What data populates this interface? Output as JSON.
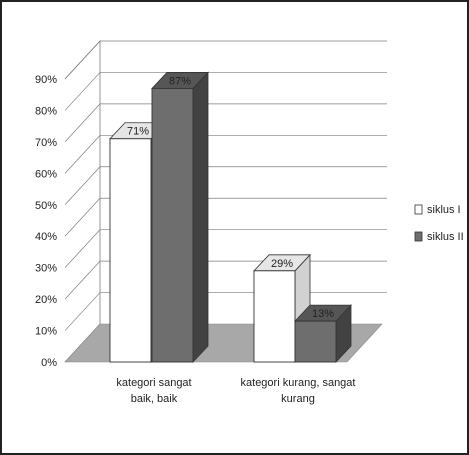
{
  "chart_data": {
    "type": "bar",
    "style": "3d-clustered-column",
    "categories": [
      "kategori sangat baik, baik",
      "kategori kurang, sangat kurang"
    ],
    "category_lines": [
      [
        "kategori sangat",
        "baik, baik"
      ],
      [
        "kategori kurang, sangat",
        "kurang"
      ]
    ],
    "series": [
      {
        "name": "siklus I",
        "values": [
          71,
          29
        ],
        "labels": [
          "71%",
          "29%"
        ],
        "color": "#ffffff"
      },
      {
        "name": "siklus II",
        "values": [
          87,
          13
        ],
        "labels": [
          "87%",
          "13%"
        ],
        "color": "#6e6e6e"
      }
    ],
    "ylim": [
      0,
      90
    ],
    "yticks": [
      "0%",
      "10%",
      "20%",
      "30%",
      "40%",
      "50%",
      "60%",
      "70%",
      "80%",
      "90%"
    ],
    "grid": true,
    "legend_position": "right",
    "colors": {
      "floor": "#a8a8a8",
      "gridline": "#7d7d7d",
      "frame": "#222222"
    }
  }
}
